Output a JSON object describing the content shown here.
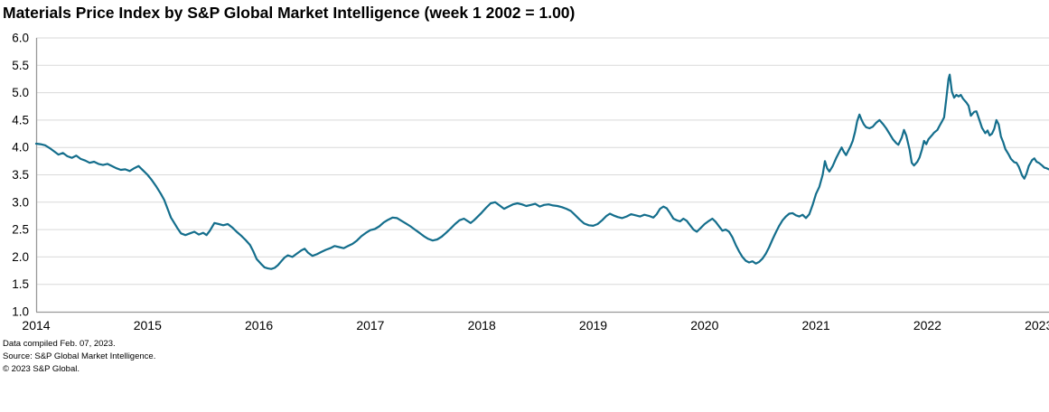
{
  "chart": {
    "title": "Materials Price Index by S&P Global Market Intelligence (week 1 2002 = 1.00)"
  },
  "footer": {
    "line1": "Data compiled Feb. 07, 2023.",
    "line2": "Source: S&P Global Market Intelligence.",
    "line3": "© 2023 S&P Global."
  },
  "colors": {
    "line": "#146e8c",
    "grid": "#d9d9d9",
    "axis": "#999999",
    "text": "#000000"
  },
  "chart_data": {
    "type": "line",
    "title": "Materials Price Index by S&P Global Market Intelligence (week 1 2002 = 1.00)",
    "xlabel": "",
    "ylabel": "",
    "xlim": [
      2014.0,
      2023.1
    ],
    "ylim": [
      1.0,
      6.0
    ],
    "grid": "horizontal",
    "legend": "none",
    "x_tick_values": [
      2014,
      2015,
      2016,
      2017,
      2018,
      2019,
      2020,
      2021,
      2022,
      2023
    ],
    "x_tick_labels": [
      "2014",
      "2015",
      "2016",
      "2017",
      "2018",
      "2019",
      "2020",
      "2021",
      "2022",
      "2023"
    ],
    "y_tick_values": [
      1.0,
      1.5,
      2.0,
      2.5,
      3.0,
      3.5,
      4.0,
      4.5,
      5.0,
      5.5,
      6.0
    ],
    "y_tick_labels": [
      "1.0",
      "1.5",
      "2.0",
      "2.5",
      "3.0",
      "3.5",
      "4.0",
      "4.5",
      "5.0",
      "5.5",
      "6.0"
    ],
    "series": [
      {
        "name": "Materials Price Index (week 1 2002 = 1.00)",
        "x": [
          2014.0,
          2014.04,
          2014.08,
          2014.12,
          2014.16,
          2014.2,
          2014.24,
          2014.28,
          2014.32,
          2014.36,
          2014.4,
          2014.44,
          2014.48,
          2014.52,
          2014.56,
          2014.6,
          2014.64,
          2014.68,
          2014.72,
          2014.76,
          2014.8,
          2014.84,
          2014.88,
          2014.92,
          2014.96,
          2015.0,
          2015.04,
          2015.08,
          2015.12,
          2015.15,
          2015.18,
          2015.21,
          2015.24,
          2015.27,
          2015.3,
          2015.34,
          2015.38,
          2015.42,
          2015.46,
          2015.5,
          2015.53,
          2015.56,
          2015.6,
          2015.64,
          2015.68,
          2015.72,
          2015.76,
          2015.8,
          2015.84,
          2015.88,
          2015.92,
          2015.95,
          2015.98,
          2016.02,
          2016.05,
          2016.08,
          2016.11,
          2016.14,
          2016.17,
          2016.2,
          2016.23,
          2016.26,
          2016.3,
          2016.34,
          2016.38,
          2016.41,
          2016.44,
          2016.48,
          2016.52,
          2016.56,
          2016.6,
          2016.64,
          2016.68,
          2016.72,
          2016.76,
          2016.8,
          2016.84,
          2016.88,
          2016.92,
          2016.96,
          2017.0,
          2017.04,
          2017.08,
          2017.12,
          2017.16,
          2017.2,
          2017.24,
          2017.28,
          2017.32,
          2017.36,
          2017.4,
          2017.44,
          2017.48,
          2017.52,
          2017.56,
          2017.6,
          2017.64,
          2017.68,
          2017.72,
          2017.76,
          2017.8,
          2017.84,
          2017.87,
          2017.9,
          2017.93,
          2017.96,
          2018.0,
          2018.04,
          2018.08,
          2018.12,
          2018.16,
          2018.2,
          2018.24,
          2018.28,
          2018.32,
          2018.36,
          2018.4,
          2018.44,
          2018.48,
          2018.52,
          2018.56,
          2018.6,
          2018.64,
          2018.68,
          2018.72,
          2018.76,
          2018.8,
          2018.84,
          2018.88,
          2018.92,
          2018.96,
          2019.0,
          2019.04,
          2019.08,
          2019.12,
          2019.15,
          2019.18,
          2019.22,
          2019.26,
          2019.3,
          2019.34,
          2019.38,
          2019.42,
          2019.46,
          2019.5,
          2019.54,
          2019.57,
          2019.6,
          2019.63,
          2019.66,
          2019.69,
          2019.72,
          2019.75,
          2019.78,
          2019.81,
          2019.84,
          2019.87,
          2019.9,
          2019.93,
          2019.96,
          2020.0,
          2020.04,
          2020.07,
          2020.1,
          2020.13,
          2020.16,
          2020.19,
          2020.22,
          2020.25,
          2020.28,
          2020.31,
          2020.34,
          2020.37,
          2020.4,
          2020.43,
          2020.46,
          2020.49,
          2020.52,
          2020.55,
          2020.58,
          2020.61,
          2020.64,
          2020.67,
          2020.7,
          2020.73,
          2020.76,
          2020.79,
          2020.82,
          2020.85,
          2020.88,
          2020.91,
          2020.94,
          2020.97,
          2021.0,
          2021.03,
          2021.06,
          2021.08,
          2021.1,
          2021.12,
          2021.15,
          2021.18,
          2021.21,
          2021.23,
          2021.25,
          2021.27,
          2021.29,
          2021.31,
          2021.33,
          2021.35,
          2021.37,
          2021.39,
          2021.41,
          2021.43,
          2021.45,
          2021.48,
          2021.51,
          2021.54,
          2021.57,
          2021.6,
          2021.63,
          2021.66,
          2021.69,
          2021.72,
          2021.74,
          2021.77,
          2021.79,
          2021.81,
          2021.84,
          2021.86,
          2021.88,
          2021.91,
          2021.93,
          2021.95,
          2021.97,
          2021.99,
          2022.01,
          2022.04,
          2022.06,
          2022.09,
          2022.11,
          2022.13,
          2022.15,
          2022.17,
          2022.19,
          2022.2,
          2022.22,
          2022.24,
          2022.26,
          2022.28,
          2022.3,
          2022.32,
          2022.35,
          2022.37,
          2022.39,
          2022.42,
          2022.44,
          2022.47,
          2022.49,
          2022.52,
          2022.54,
          2022.56,
          2022.58,
          2022.6,
          2022.62,
          2022.64,
          2022.66,
          2022.68,
          2022.7,
          2022.73,
          2022.75,
          2022.78,
          2022.8,
          2022.82,
          2022.85,
          2022.87,
          2022.89,
          2022.91,
          2022.94,
          2022.96,
          2022.98,
          2023.0,
          2023.03,
          2023.05,
          2023.07,
          2023.09
        ],
        "y": [
          4.07,
          4.06,
          4.04,
          3.99,
          3.93,
          3.87,
          3.9,
          3.84,
          3.81,
          3.85,
          3.79,
          3.76,
          3.72,
          3.74,
          3.7,
          3.68,
          3.7,
          3.66,
          3.62,
          3.59,
          3.6,
          3.57,
          3.62,
          3.66,
          3.58,
          3.5,
          3.4,
          3.28,
          3.15,
          3.04,
          2.88,
          2.72,
          2.62,
          2.52,
          2.43,
          2.4,
          2.43,
          2.46,
          2.41,
          2.44,
          2.4,
          2.48,
          2.62,
          2.6,
          2.58,
          2.6,
          2.54,
          2.46,
          2.39,
          2.31,
          2.22,
          2.1,
          1.96,
          1.87,
          1.81,
          1.79,
          1.78,
          1.8,
          1.85,
          1.92,
          1.99,
          2.03,
          2.0,
          2.06,
          2.12,
          2.15,
          2.08,
          2.02,
          2.05,
          2.09,
          2.13,
          2.16,
          2.2,
          2.18,
          2.16,
          2.2,
          2.24,
          2.3,
          2.38,
          2.44,
          2.49,
          2.51,
          2.56,
          2.63,
          2.68,
          2.72,
          2.71,
          2.66,
          2.61,
          2.56,
          2.5,
          2.44,
          2.38,
          2.33,
          2.3,
          2.32,
          2.37,
          2.44,
          2.52,
          2.6,
          2.67,
          2.7,
          2.66,
          2.62,
          2.67,
          2.73,
          2.81,
          2.9,
          2.98,
          3.0,
          2.94,
          2.88,
          2.92,
          2.96,
          2.98,
          2.96,
          2.93,
          2.95,
          2.97,
          2.92,
          2.95,
          2.96,
          2.94,
          2.93,
          2.91,
          2.88,
          2.84,
          2.76,
          2.68,
          2.61,
          2.58,
          2.57,
          2.6,
          2.67,
          2.75,
          2.79,
          2.76,
          2.73,
          2.71,
          2.74,
          2.78,
          2.76,
          2.74,
          2.77,
          2.75,
          2.72,
          2.78,
          2.88,
          2.92,
          2.89,
          2.8,
          2.7,
          2.67,
          2.65,
          2.7,
          2.66,
          2.58,
          2.5,
          2.46,
          2.52,
          2.6,
          2.66,
          2.7,
          2.64,
          2.56,
          2.48,
          2.5,
          2.46,
          2.36,
          2.22,
          2.1,
          2.0,
          1.93,
          1.9,
          1.92,
          1.88,
          1.91,
          1.97,
          2.06,
          2.18,
          2.32,
          2.45,
          2.57,
          2.67,
          2.74,
          2.79,
          2.8,
          2.76,
          2.74,
          2.77,
          2.71,
          2.78,
          2.95,
          3.15,
          3.28,
          3.5,
          3.75,
          3.62,
          3.56,
          3.66,
          3.8,
          3.92,
          4.0,
          3.92,
          3.86,
          3.94,
          4.02,
          4.12,
          4.28,
          4.48,
          4.6,
          4.5,
          4.42,
          4.37,
          4.35,
          4.38,
          4.45,
          4.5,
          4.43,
          4.35,
          4.25,
          4.15,
          4.08,
          4.05,
          4.18,
          4.32,
          4.22,
          3.96,
          3.72,
          3.67,
          3.74,
          3.82,
          3.95,
          4.12,
          4.06,
          4.15,
          4.22,
          4.27,
          4.32,
          4.4,
          4.47,
          4.55,
          4.9,
          5.25,
          5.33,
          5.02,
          4.91,
          4.96,
          4.93,
          4.96,
          4.89,
          4.82,
          4.76,
          4.58,
          4.65,
          4.66,
          4.48,
          4.36,
          4.26,
          4.31,
          4.22,
          4.25,
          4.34,
          4.5,
          4.42,
          4.2,
          4.1,
          3.97,
          3.87,
          3.79,
          3.73,
          3.72,
          3.65,
          3.49,
          3.43,
          3.52,
          3.66,
          3.77,
          3.8,
          3.74,
          3.72,
          3.67,
          3.63,
          3.62,
          3.6
        ]
      }
    ]
  }
}
